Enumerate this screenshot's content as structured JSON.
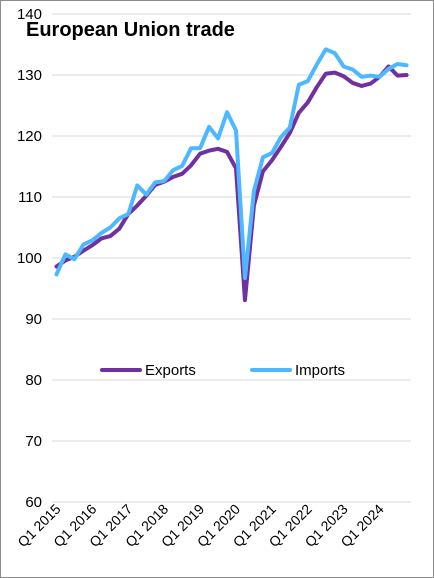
{
  "chart_data": {
    "type": "line",
    "title": "European Union trade",
    "xlabel": "",
    "ylabel": "",
    "ylim": [
      60,
      140
    ],
    "yticks": [
      60,
      70,
      80,
      90,
      100,
      110,
      120,
      130,
      140
    ],
    "grid": "horizontal",
    "legend_placement": "center",
    "x_tick_labels": [
      "Q1 2015",
      "Q1 2016",
      "Q1 2017",
      "Q1 2018",
      "Q1 2019",
      "Q1 2020",
      "Q1 2021",
      "Q1 2022",
      "Q1 2023",
      "Q1 2024"
    ],
    "x": [
      "Q1 2015",
      "Q2 2015",
      "Q3 2015",
      "Q4 2015",
      "Q1 2016",
      "Q2 2016",
      "Q3 2016",
      "Q4 2016",
      "Q1 2017",
      "Q2 2017",
      "Q3 2017",
      "Q4 2017",
      "Q1 2018",
      "Q2 2018",
      "Q3 2018",
      "Q4 2018",
      "Q1 2019",
      "Q2 2019",
      "Q3 2019",
      "Q4 2019",
      "Q1 2020",
      "Q2 2020",
      "Q3 2020",
      "Q4 2020",
      "Q1 2021",
      "Q2 2021",
      "Q3 2021",
      "Q4 2021",
      "Q1 2022",
      "Q2 2022",
      "Q3 2022",
      "Q4 2022",
      "Q1 2023",
      "Q2 2023",
      "Q3 2023",
      "Q4 2023",
      "Q1 2024",
      "Q2 2024",
      "Q3 2024",
      "Q4 2024"
    ],
    "series": [
      {
        "name": "Exports",
        "color": "#7030a0",
        "values": [
          98.6,
          99.6,
          100.2,
          101.2,
          102.1,
          103.2,
          103.6,
          104.8,
          107.2,
          108.6,
          110.2,
          112.0,
          112.5,
          113.3,
          113.8,
          115.2,
          117.1,
          117.6,
          117.9,
          117.4,
          114.7,
          93.1,
          108.6,
          114.2,
          116.0,
          118.2,
          120.5,
          123.8,
          125.5,
          128.0,
          130.2,
          130.4,
          129.8,
          128.7,
          128.2,
          128.6,
          129.7,
          131.4,
          129.9,
          130.0
        ]
      },
      {
        "name": "Imports",
        "color": "#4db8ff",
        "values": [
          97.3,
          100.6,
          99.8,
          102.2,
          102.9,
          104.1,
          105.0,
          106.5,
          107.2,
          111.9,
          110.4,
          112.4,
          112.6,
          114.4,
          115.1,
          118.0,
          118.0,
          121.5,
          119.6,
          123.9,
          120.9,
          96.7,
          111.0,
          116.5,
          117.2,
          119.8,
          121.4,
          128.4,
          129.0,
          131.7,
          134.2,
          133.6,
          131.4,
          130.9,
          129.7,
          129.9,
          129.7,
          131.0,
          131.8,
          131.6
        ]
      }
    ]
  }
}
